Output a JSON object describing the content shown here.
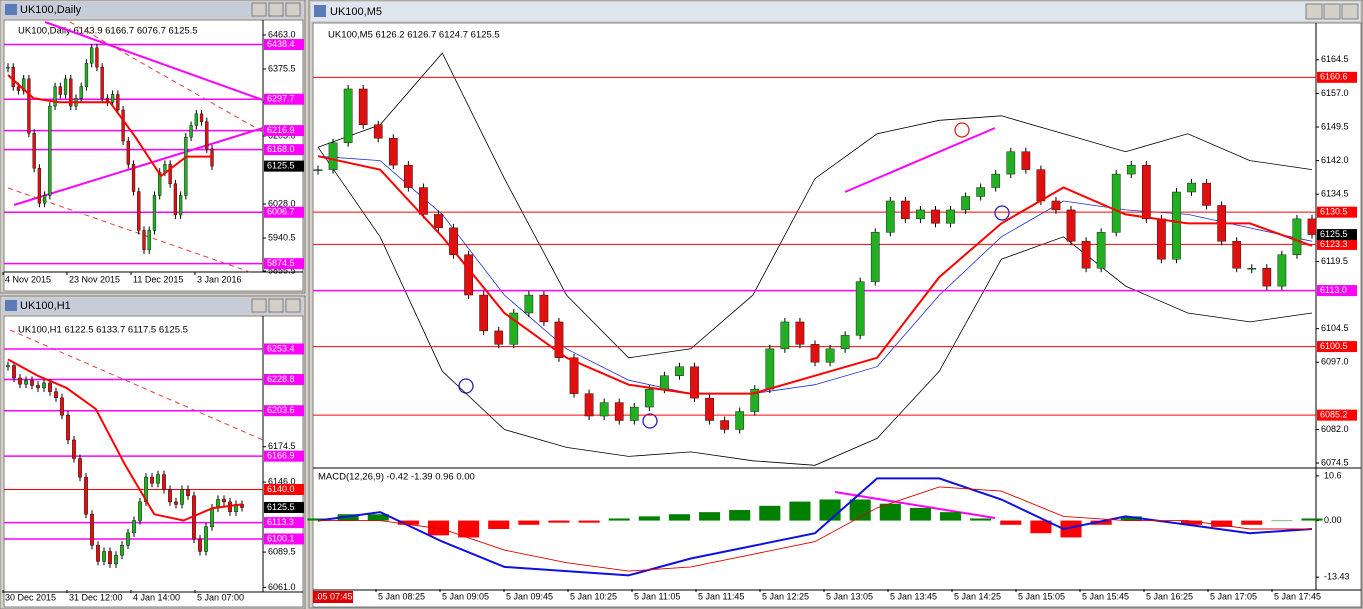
{
  "windows": [
    {
      "title": "UK100,Daily",
      "header": "UK100,Daily  6143.9 6166.7 6076.7 6125.5",
      "ylim": [
        5853,
        6499
      ],
      "yticks": [
        {
          "value": 6463,
          "label": "6463.0"
        },
        6375.5,
        {
          "value": 6290,
          "label": "6290.0"
        },
        {
          "value": 6203,
          "label": "6203.0"
        },
        {
          "value": 6028,
          "label": "6028.0"
        },
        5940.5,
        5855.5
      ],
      "levels": [
        6438.4,
        6297.7,
        6216.9,
        {
          "value": 6168,
          "label": "6168.0"
        },
        6006.7,
        5874.5
      ],
      "level_colors": [
        "#ff00ff",
        "#ff00ff",
        "#ff00ff",
        "#ff00ff",
        "#ff00ff",
        "#ff00ff"
      ],
      "current": 6125.5,
      "time_labels": [
        "4 Nov 2015",
        "23 Nov 2015",
        "11 Dec 2015",
        "3 Jan 2016"
      ],
      "closes": [
        6380,
        6330,
        6320,
        6350,
        6210,
        6120,
        6030,
        6050,
        6280,
        6330,
        6310,
        6350,
        6280,
        6300,
        6330,
        6390,
        6430,
        6380,
        6300,
        6290,
        6310,
        6270,
        6190,
        6130,
        6060,
        5960,
        5910,
        5960,
        6050,
        6110,
        6130,
        6080,
        6000,
        6050,
        6200,
        6230,
        6260,
        6240,
        6170,
        6125.5
      ],
      "ma": [
        6360,
        6300,
        6290,
        6290,
        6290,
        6200,
        6100,
        6150,
        6150
      ]
    },
    {
      "title": "UK100,H1",
      "header": "UK100,H1  6122.5 6133.7 6117.5 6125.5",
      "ylim": [
        6057.3,
        6278.4
      ],
      "yticks": [
        6174.5,
        {
          "value": 6146,
          "label": "6146.0"
        },
        6089.5,
        {
          "value": 6061,
          "label": "6061.0"
        }
      ],
      "levels": [
        6253.4,
        6228.8,
        6203.6,
        6166.9,
        {
          "value": 6140,
          "label": "6140.0"
        },
        6113.3,
        6100.1
      ],
      "level_colors": [
        "#ff00ff",
        "#ff00ff",
        "#ff00ff",
        "#ff00ff",
        "#ff0000",
        "#ff00ff",
        "#ff00ff"
      ],
      "current": 6125.5,
      "time_labels": [
        "30 Dec 2015",
        "31 Dec 12:00",
        "4 Jan 14:00",
        "5 Jan 07:00"
      ],
      "closes": [
        6240,
        6230,
        6225,
        6228,
        6224,
        6222,
        6226,
        6219,
        6214,
        6200,
        6180,
        6165,
        6150,
        6120,
        6095,
        6082,
        6090,
        6080,
        6087,
        6095,
        6105,
        6115,
        6130,
        6150,
        6145,
        6152,
        6140,
        6130,
        6128,
        6140,
        6135,
        6100,
        6090,
        6110,
        6125,
        6132,
        6130,
        6122,
        6128,
        6125.5
      ],
      "ma": [
        6245,
        6232,
        6222,
        6205,
        6160,
        6120,
        6115,
        6125,
        6128
      ]
    },
    {
      "title": "UK100,M5",
      "header": "UK100,M5  6126.2 6126.7 6124.7 6125.5",
      "ylim": [
        6073.4,
        6172.5
      ],
      "yticks": [
        6164.5,
        {
          "value": 6157,
          "label": "6157.0"
        },
        6149.5,
        {
          "value": 6142,
          "label": "6142.0"
        },
        6134.5,
        6119.5,
        6104.5,
        {
          "value": 6097,
          "label": "6097.0"
        },
        {
          "value": 6082,
          "label": "6082.0"
        },
        6074.5
      ],
      "levels": [
        6160.6,
        6130.5,
        6123.3,
        {
          "value": 6113,
          "label": "6113.0"
        },
        6100.5,
        6085.2
      ],
      "level_colors": [
        "#ff0000",
        "#ff0000",
        "#ff0000",
        "#ff00ff",
        "#ff0000",
        "#ff0000"
      ],
      "current": 6125.5,
      "time_marker": ".05 07:45",
      "time_labels": [
        "5 Jan 08:25",
        "5 Jan 09:05",
        "5 Jan 09:45",
        "5 Jan 10:25",
        "5 Jan 11:05",
        "5 Jan 11:45",
        "5 Jan 12:25",
        "5 Jan 13:05",
        "5 Jan 13:45",
        "5 Jan 14:25",
        "5 Jan 15:05",
        "5 Jan 15:45",
        "5 Jan 16:25",
        "5 Jan 17:05",
        "5 Jan 17:45"
      ],
      "closes": [
        6140,
        6146,
        6158,
        6150,
        6147,
        6141,
        6136,
        6130,
        6127,
        6121,
        6112,
        6104,
        6101,
        6108,
        6112,
        6106,
        6098,
        6090,
        6085,
        6088,
        6084,
        6087,
        6091,
        6094,
        6096,
        6089,
        6084,
        6082,
        6086,
        6091,
        6100,
        6106,
        6101,
        6097,
        6100,
        6103,
        6115,
        6126,
        6133,
        6129,
        6131,
        6128,
        6131,
        6134,
        6136,
        6139,
        6144,
        6140,
        6133,
        6131,
        6124,
        6118,
        6126,
        6139,
        6141,
        6129,
        6120,
        6135,
        6137,
        6132,
        6124,
        6118,
        6118,
        6114,
        6121,
        6129,
        6125.5
      ],
      "ma": [
        6143,
        6140,
        6125,
        6108,
        6098,
        6092,
        6090,
        6090,
        6094,
        6098,
        6116,
        6128,
        6136,
        6130,
        6128,
        6128,
        6123
      ],
      "ma_blue": [
        6143,
        6142,
        6130,
        6112,
        6100,
        6093,
        6090,
        6090,
        6092,
        6096,
        6112,
        6125,
        6133,
        6131,
        6130,
        6127,
        6124
      ],
      "bb_upper": [
        6145,
        6150,
        6166,
        6138,
        6112,
        6098,
        6100,
        6112,
        6138,
        6148,
        6151,
        6152,
        6148,
        6144,
        6148,
        6142,
        6140
      ],
      "bb_lower": [
        6145,
        6125,
        6095,
        6082,
        6078,
        6076,
        6077,
        6075,
        6074,
        6080,
        6095,
        6120,
        6125,
        6114,
        6108,
        6106,
        6108
      ],
      "macd": {
        "header": "MACD(12,26,9) -0.42 -1.39 0.96 0.00",
        "ylim": [
          -16,
          12
        ],
        "yticks": [
          10.6,
          {
            "value": 0,
            "label": "0.00"
          },
          -13.43
        ],
        "histogram": [
          0.5,
          1.5,
          1.5,
          -1,
          -3.5,
          -4,
          -2,
          -1,
          -0.5,
          -0.5,
          0.5,
          1,
          1.5,
          2,
          2.5,
          3.5,
          4.5,
          5,
          5,
          4,
          3,
          2,
          0.5,
          -1,
          -3,
          -4,
          -1,
          1,
          0,
          -1,
          -1.5,
          -1,
          0,
          0.5
        ],
        "main": [
          0,
          2,
          -5,
          -11,
          -12,
          -13,
          -9,
          -6,
          -3,
          10,
          10,
          5,
          -2,
          1,
          -1,
          -3,
          -2
        ],
        "signal": [
          0,
          0,
          -2,
          -7,
          -10,
          -12,
          -11,
          -8,
          -5,
          3,
          8,
          7,
          1,
          0,
          0,
          -2,
          -2
        ]
      }
    }
  ]
}
